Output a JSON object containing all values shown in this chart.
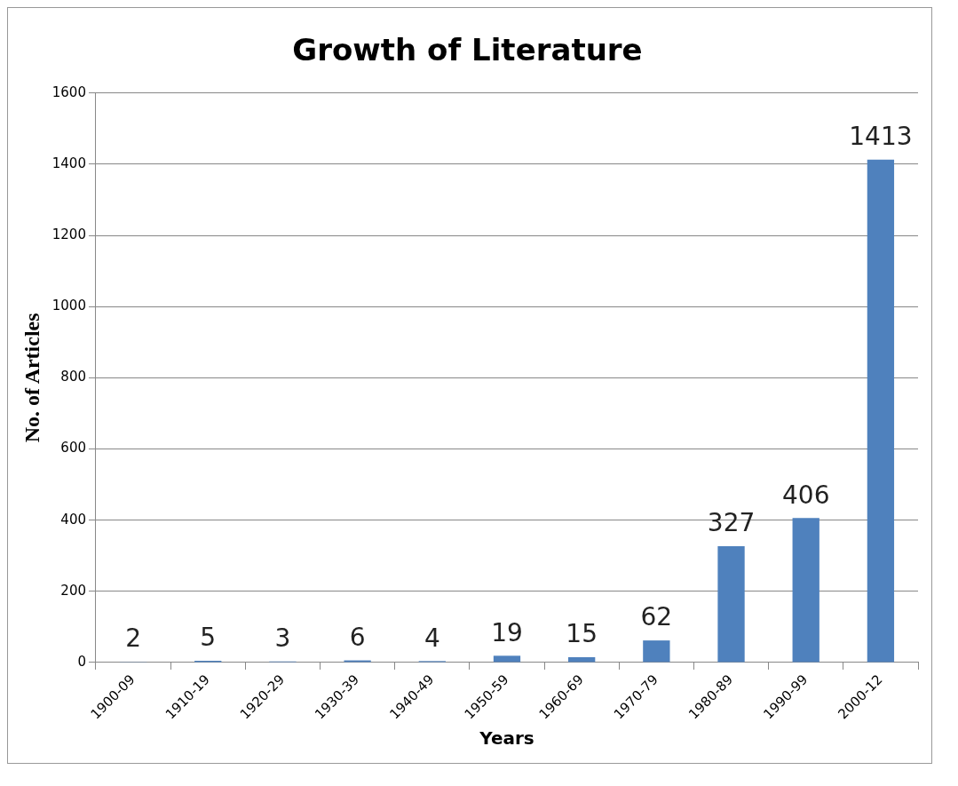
{
  "chart_data": {
    "type": "bar",
    "title": "Growth of Literature",
    "xlabel": "Years",
    "ylabel": "No. of Articles",
    "categories": [
      "1900-09",
      "1910-19",
      "1920-29",
      "1930-39",
      "1940-49",
      "1950-59",
      "1960-69",
      "1970-79",
      "1980-89",
      "1990-99",
      "2000-12"
    ],
    "values": [
      2,
      5,
      3,
      6,
      4,
      19,
      15,
      62,
      327,
      406,
      1413
    ],
    "color": "#4f81bd",
    "ylim": [
      0,
      1600
    ],
    "yticks": [
      0,
      200,
      400,
      600,
      800,
      1000,
      1200,
      1400,
      1600
    ],
    "grid": "y",
    "legend": false,
    "data_labels": true
  }
}
